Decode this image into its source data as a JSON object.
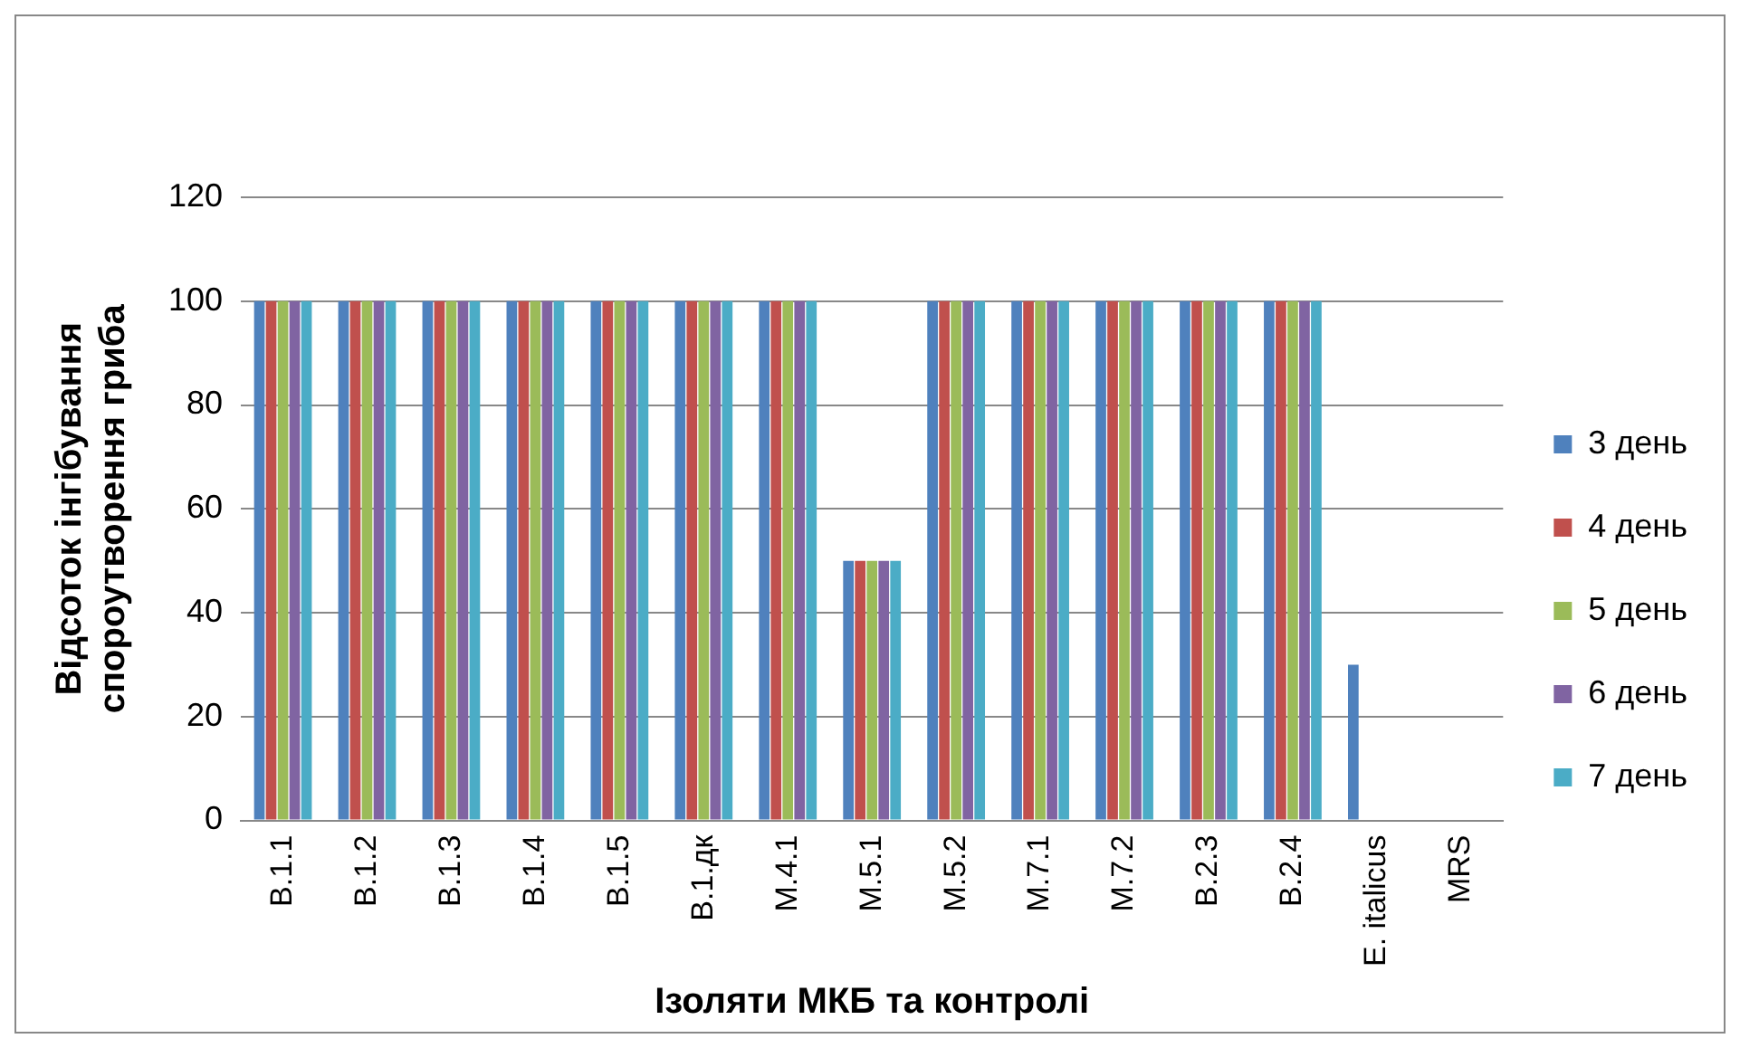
{
  "chart_data": {
    "type": "bar",
    "xlabel": "Ізоляти МКБ та контролі",
    "ylabel": "Відсоток інгібування\nспороутворення гриба",
    "categories": [
      "B.1.1",
      "B.1.2",
      "B.1.3",
      "B.1.4",
      "B.1.5",
      "B.1.дк",
      "M.4.1",
      "M.5.1",
      "M.5.2",
      "M.7.1",
      "M.7.2",
      "B.2.3",
      "B.2.4",
      "E. italicus",
      "MRS"
    ],
    "series": [
      {
        "name": "3 день",
        "color": "#4f81bd",
        "values": [
          100,
          100,
          100,
          100,
          100,
          100,
          100,
          50,
          100,
          100,
          100,
          100,
          100,
          30,
          0
        ]
      },
      {
        "name": "4 день",
        "color": "#c0504d",
        "values": [
          100,
          100,
          100,
          100,
          100,
          100,
          100,
          50,
          100,
          100,
          100,
          100,
          100,
          0,
          0
        ]
      },
      {
        "name": "5 день",
        "color": "#9bbb59",
        "values": [
          100,
          100,
          100,
          100,
          100,
          100,
          100,
          50,
          100,
          100,
          100,
          100,
          100,
          0,
          0
        ]
      },
      {
        "name": "6 день",
        "color": "#8064a2",
        "values": [
          100,
          100,
          100,
          100,
          100,
          100,
          100,
          50,
          100,
          100,
          100,
          100,
          100,
          0,
          0
        ]
      },
      {
        "name": "7 день",
        "color": "#4bacc6",
        "values": [
          100,
          100,
          100,
          100,
          100,
          100,
          100,
          50,
          100,
          100,
          100,
          100,
          100,
          0,
          0
        ]
      }
    ],
    "ylim": [
      0,
      120
    ],
    "yticks": [
      0,
      20,
      40,
      60,
      80,
      100,
      120
    ],
    "grid": "y",
    "legend": "right"
  }
}
